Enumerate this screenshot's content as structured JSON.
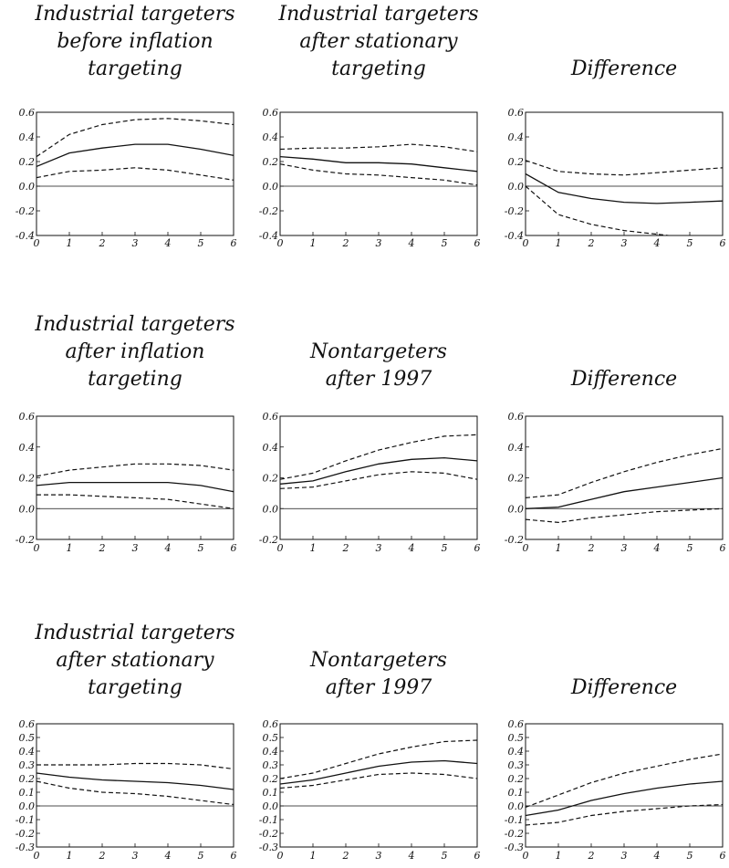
{
  "chart_data": [
    {
      "type": "line",
      "title": [
        "Industrial targeters",
        "before inflation",
        "targeting"
      ],
      "x": [
        0,
        1,
        2,
        3,
        4,
        5,
        6
      ],
      "xticks": [
        "0",
        "1",
        "2",
        "3",
        "4",
        "5",
        "6"
      ],
      "ylim": [
        -0.4,
        0.6
      ],
      "yticks": [
        "0.6",
        "0.4",
        "0.2",
        "0.0",
        "-0.2",
        "-0.4"
      ],
      "yticks_values": [
        0.6,
        0.4,
        0.2,
        0.0,
        -0.2,
        -0.4
      ],
      "series": [
        {
          "role": "estimate",
          "values": [
            0.16,
            0.27,
            0.31,
            0.34,
            0.34,
            0.3,
            0.25
          ]
        },
        {
          "role": "upper",
          "values": [
            0.24,
            0.42,
            0.5,
            0.54,
            0.55,
            0.53,
            0.5
          ]
        },
        {
          "role": "lower",
          "values": [
            0.07,
            0.12,
            0.13,
            0.15,
            0.13,
            0.09,
            0.05
          ]
        }
      ]
    },
    {
      "type": "line",
      "title": [
        "Industrial targeters",
        "after stationary",
        "targeting"
      ],
      "x": [
        0,
        1,
        2,
        3,
        4,
        5,
        6
      ],
      "xticks": [
        "0",
        "1",
        "2",
        "3",
        "4",
        "5",
        "6"
      ],
      "ylim": [
        -0.4,
        0.6
      ],
      "yticks": [
        "0.6",
        "0.4",
        "0.2",
        "0.0",
        "-0.2",
        "-0.4"
      ],
      "yticks_values": [
        0.6,
        0.4,
        0.2,
        0.0,
        -0.2,
        -0.4
      ],
      "series": [
        {
          "role": "estimate",
          "values": [
            0.24,
            0.22,
            0.19,
            0.19,
            0.18,
            0.15,
            0.12
          ]
        },
        {
          "role": "upper",
          "values": [
            0.3,
            0.31,
            0.31,
            0.32,
            0.34,
            0.32,
            0.28
          ]
        },
        {
          "role": "lower",
          "values": [
            0.18,
            0.13,
            0.1,
            0.09,
            0.07,
            0.05,
            0.01
          ]
        }
      ]
    },
    {
      "type": "line",
      "title": [
        "Difference"
      ],
      "x": [
        0,
        1,
        2,
        3,
        4,
        5,
        6
      ],
      "xticks": [
        "0",
        "1",
        "2",
        "3",
        "4",
        "5",
        "6"
      ],
      "ylim": [
        -0.4,
        0.6
      ],
      "yticks": [
        "0.6",
        "0.4",
        "0.2",
        "0.0",
        "-0.2",
        "-0.4"
      ],
      "yticks_values": [
        0.6,
        0.4,
        0.2,
        0.0,
        -0.2,
        -0.4
      ],
      "series": [
        {
          "role": "estimate",
          "values": [
            0.1,
            -0.05,
            -0.1,
            -0.13,
            -0.14,
            -0.13,
            -0.12
          ]
        },
        {
          "role": "upper",
          "values": [
            0.21,
            0.12,
            0.1,
            0.09,
            0.11,
            0.13,
            0.15
          ]
        },
        {
          "role": "lower",
          "values": [
            0.0,
            -0.23,
            -0.31,
            -0.36,
            -0.39,
            -0.42,
            -0.45
          ]
        }
      ]
    },
    {
      "type": "line",
      "title": [
        "Industrial targeters",
        "after inflation",
        "targeting"
      ],
      "x": [
        0,
        1,
        2,
        3,
        4,
        5,
        6
      ],
      "xticks": [
        "0",
        "1",
        "2",
        "3",
        "4",
        "5",
        "6"
      ],
      "ylim": [
        -0.2,
        0.6
      ],
      "yticks": [
        "0.6",
        "0.4",
        "0.2",
        "0.0",
        "-0.2"
      ],
      "yticks_values": [
        0.6,
        0.4,
        0.2,
        0.0,
        -0.2
      ],
      "series": [
        {
          "role": "estimate",
          "values": [
            0.15,
            0.17,
            0.17,
            0.17,
            0.17,
            0.15,
            0.11
          ]
        },
        {
          "role": "upper",
          "values": [
            0.21,
            0.25,
            0.27,
            0.29,
            0.29,
            0.28,
            0.25
          ]
        },
        {
          "role": "lower",
          "values": [
            0.09,
            0.09,
            0.08,
            0.07,
            0.06,
            0.03,
            0.0
          ]
        }
      ]
    },
    {
      "type": "line",
      "title": [
        "Nontargeters",
        "after 1997"
      ],
      "x": [
        0,
        1,
        2,
        3,
        4,
        5,
        6
      ],
      "xticks": [
        "0",
        "1",
        "2",
        "3",
        "4",
        "5",
        "6"
      ],
      "ylim": [
        -0.2,
        0.6
      ],
      "yticks": [
        "0.6",
        "0.4",
        "0.2",
        "0.0",
        "-0.2"
      ],
      "yticks_values": [
        0.6,
        0.4,
        0.2,
        0.0,
        -0.2
      ],
      "series": [
        {
          "role": "estimate",
          "values": [
            0.16,
            0.18,
            0.24,
            0.29,
            0.32,
            0.33,
            0.31
          ]
        },
        {
          "role": "upper",
          "values": [
            0.19,
            0.23,
            0.31,
            0.38,
            0.43,
            0.47,
            0.48
          ]
        },
        {
          "role": "lower",
          "values": [
            0.13,
            0.14,
            0.18,
            0.22,
            0.24,
            0.23,
            0.19
          ]
        }
      ]
    },
    {
      "type": "line",
      "title": [
        "Difference"
      ],
      "x": [
        0,
        1,
        2,
        3,
        4,
        5,
        6
      ],
      "xticks": [
        "0",
        "1",
        "2",
        "3",
        "4",
        "5",
        "6"
      ],
      "ylim": [
        -0.2,
        0.6
      ],
      "yticks": [
        "0.6",
        "0.4",
        "0.2",
        "0.0",
        "-0.2"
      ],
      "yticks_values": [
        0.6,
        0.4,
        0.2,
        0.0,
        -0.2
      ],
      "series": [
        {
          "role": "estimate",
          "values": [
            0.0,
            0.01,
            0.06,
            0.11,
            0.14,
            0.17,
            0.2
          ]
        },
        {
          "role": "upper",
          "values": [
            0.07,
            0.09,
            0.17,
            0.24,
            0.3,
            0.35,
            0.39
          ]
        },
        {
          "role": "lower",
          "values": [
            -0.07,
            -0.09,
            -0.06,
            -0.04,
            -0.02,
            -0.01,
            0.0
          ]
        }
      ]
    },
    {
      "type": "line",
      "title": [
        "Industrial targeters",
        "after stationary",
        "targeting"
      ],
      "x": [
        0,
        1,
        2,
        3,
        4,
        5,
        6
      ],
      "xticks": [
        "0",
        "1",
        "2",
        "3",
        "4",
        "5",
        "6"
      ],
      "ylim": [
        -0.3,
        0.6
      ],
      "yticks": [
        "0.6",
        "0.5",
        "0.4",
        "0.3",
        "0.2",
        "0.1",
        "0.0",
        "-0.1",
        "-0.2",
        "-0.3"
      ],
      "yticks_values": [
        0.6,
        0.5,
        0.4,
        0.3,
        0.2,
        0.1,
        0.0,
        -0.1,
        -0.2,
        -0.3
      ],
      "series": [
        {
          "role": "estimate",
          "values": [
            0.24,
            0.21,
            0.19,
            0.18,
            0.17,
            0.15,
            0.12
          ]
        },
        {
          "role": "upper",
          "values": [
            0.3,
            0.3,
            0.3,
            0.31,
            0.31,
            0.3,
            0.27
          ]
        },
        {
          "role": "lower",
          "values": [
            0.18,
            0.13,
            0.1,
            0.09,
            0.07,
            0.04,
            0.01
          ]
        }
      ]
    },
    {
      "type": "line",
      "title": [
        "Nontargeters",
        "after 1997"
      ],
      "x": [
        0,
        1,
        2,
        3,
        4,
        5,
        6
      ],
      "xticks": [
        "0",
        "1",
        "2",
        "3",
        "4",
        "5",
        "6"
      ],
      "ylim": [
        -0.3,
        0.6
      ],
      "yticks": [
        "0.6",
        "0.5",
        "0.4",
        "0.3",
        "0.2",
        "0.1",
        "0.0",
        "-0.1",
        "-0.2",
        "-0.3"
      ],
      "yticks_values": [
        0.6,
        0.5,
        0.4,
        0.3,
        0.2,
        0.1,
        0.0,
        -0.1,
        -0.2,
        -0.3
      ],
      "series": [
        {
          "role": "estimate",
          "values": [
            0.16,
            0.19,
            0.24,
            0.29,
            0.32,
            0.33,
            0.31
          ]
        },
        {
          "role": "upper",
          "values": [
            0.2,
            0.24,
            0.31,
            0.38,
            0.43,
            0.47,
            0.48
          ]
        },
        {
          "role": "lower",
          "values": [
            0.13,
            0.15,
            0.19,
            0.23,
            0.24,
            0.23,
            0.2
          ]
        }
      ]
    },
    {
      "type": "line",
      "title": [
        "Difference"
      ],
      "x": [
        0,
        1,
        2,
        3,
        4,
        5,
        6
      ],
      "xticks": [
        "0",
        "1",
        "2",
        "3",
        "4",
        "5",
        "6"
      ],
      "ylim": [
        -0.3,
        0.6
      ],
      "yticks": [
        "0.6",
        "0.5",
        "0.4",
        "0.3",
        "0.2",
        "0.1",
        "0.0",
        "-0.1",
        "-0.2",
        "-0.3"
      ],
      "yticks_values": [
        0.6,
        0.5,
        0.4,
        0.3,
        0.2,
        0.1,
        0.0,
        -0.1,
        -0.2,
        -0.3
      ],
      "series": [
        {
          "role": "estimate",
          "values": [
            -0.07,
            -0.03,
            0.04,
            0.09,
            0.13,
            0.16,
            0.18
          ]
        },
        {
          "role": "upper",
          "values": [
            -0.01,
            0.08,
            0.17,
            0.24,
            0.29,
            0.34,
            0.38
          ]
        },
        {
          "role": "lower",
          "values": [
            -0.14,
            -0.12,
            -0.07,
            -0.04,
            -0.02,
            0.0,
            0.01
          ]
        }
      ]
    }
  ]
}
